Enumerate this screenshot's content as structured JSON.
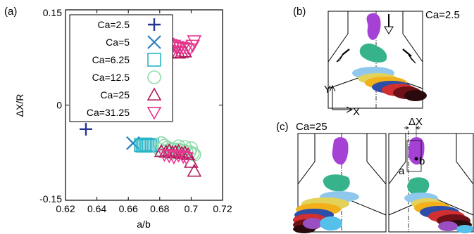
{
  "figure": {
    "panel_a_label": "(a)",
    "panel_b_label": "(b)",
    "panel_c_label": "(c)",
    "panel_b_ca": "Ca=2.5",
    "panel_c_ca": "Ca=25",
    "axis_y_label": "Y",
    "axis_x_label": "X",
    "delta_x_label": "ΔX",
    "label_a": "a",
    "label_b": "b"
  },
  "chart_data": {
    "type": "scatter",
    "xlabel": "a/b",
    "ylabel": "ΔX/R",
    "xlim": [
      0.62,
      0.72
    ],
    "ylim": [
      -0.15,
      0.15
    ],
    "xticks": [
      "0.62",
      "0.64",
      "0.66",
      "0.68",
      "0.7",
      "0.72"
    ],
    "yticks": [
      "0.15",
      "0",
      "-0.15"
    ],
    "legend_position": "top-left",
    "series": [
      {
        "name": "Ca=2.5",
        "marker": "plus",
        "color": "#26368f",
        "points": [
          [
            0.633,
            -0.038
          ]
        ]
      },
      {
        "name": "Ca=5",
        "marker": "x",
        "color": "#2b7fc0",
        "points": [
          [
            0.663,
            -0.06
          ]
        ]
      },
      {
        "name": "Ca=6.25",
        "marker": "square",
        "color": "#29b5c6",
        "points": [
          [
            0.668,
            -0.063
          ],
          [
            0.669,
            -0.064
          ],
          [
            0.67,
            -0.064
          ],
          [
            0.671,
            -0.064
          ],
          [
            0.672,
            -0.063
          ],
          [
            0.673,
            -0.063
          ],
          [
            0.674,
            -0.064
          ],
          [
            0.671,
            -0.062
          ],
          [
            0.675,
            -0.063
          ]
        ]
      },
      {
        "name": "Ca=12.5",
        "marker": "circle",
        "color": "#8fdcaa",
        "points": [
          [
            0.681,
            -0.06
          ],
          [
            0.683,
            -0.064
          ],
          [
            0.685,
            -0.067
          ],
          [
            0.687,
            -0.069
          ],
          [
            0.689,
            -0.07
          ],
          [
            0.691,
            -0.07
          ],
          [
            0.693,
            -0.071
          ],
          [
            0.695,
            -0.072
          ],
          [
            0.697,
            -0.073
          ],
          [
            0.699,
            -0.074
          ],
          [
            0.701,
            -0.076
          ],
          [
            0.702,
            -0.078
          ],
          [
            0.7,
            -0.068
          ],
          [
            0.696,
            -0.066
          ],
          [
            0.692,
            -0.065
          ],
          [
            0.688,
            -0.075
          ],
          [
            0.684,
            -0.073
          ],
          [
            0.68,
            -0.07
          ]
        ]
      },
      {
        "name": "Ca=25",
        "marker": "triangle-up",
        "color": "#b0195a",
        "points": [
          [
            0.681,
            -0.073
          ],
          [
            0.684,
            -0.074
          ],
          [
            0.686,
            -0.072
          ],
          [
            0.688,
            -0.075
          ],
          [
            0.69,
            -0.074
          ],
          [
            0.692,
            -0.073
          ],
          [
            0.694,
            -0.076
          ],
          [
            0.696,
            -0.075
          ],
          [
            0.698,
            -0.078
          ],
          [
            0.7,
            -0.09
          ],
          [
            0.702,
            -0.104
          ],
          [
            0.69,
            0.083
          ],
          [
            0.692,
            0.082
          ],
          [
            0.694,
            0.083
          ],
          [
            0.696,
            0.084
          ]
        ]
      },
      {
        "name": "Ca=31.25",
        "marker": "triangle-down",
        "color": "#e8348f",
        "points": [
          [
            0.681,
            0.101
          ],
          [
            0.683,
            0.099
          ],
          [
            0.685,
            0.097
          ],
          [
            0.687,
            0.095
          ],
          [
            0.689,
            0.094
          ],
          [
            0.691,
            0.092
          ],
          [
            0.693,
            0.091
          ],
          [
            0.695,
            0.09
          ],
          [
            0.697,
            0.089
          ],
          [
            0.699,
            0.088
          ],
          [
            0.701,
            0.094
          ],
          [
            0.702,
            0.101
          ],
          [
            0.683,
            -0.078
          ],
          [
            0.686,
            -0.08
          ],
          [
            0.689,
            -0.082
          ],
          [
            0.692,
            -0.079
          ],
          [
            0.695,
            -0.081
          ],
          [
            0.697,
            -0.083
          ],
          [
            0.688,
            0.084
          ],
          [
            0.692,
            0.085
          ]
        ]
      }
    ]
  }
}
